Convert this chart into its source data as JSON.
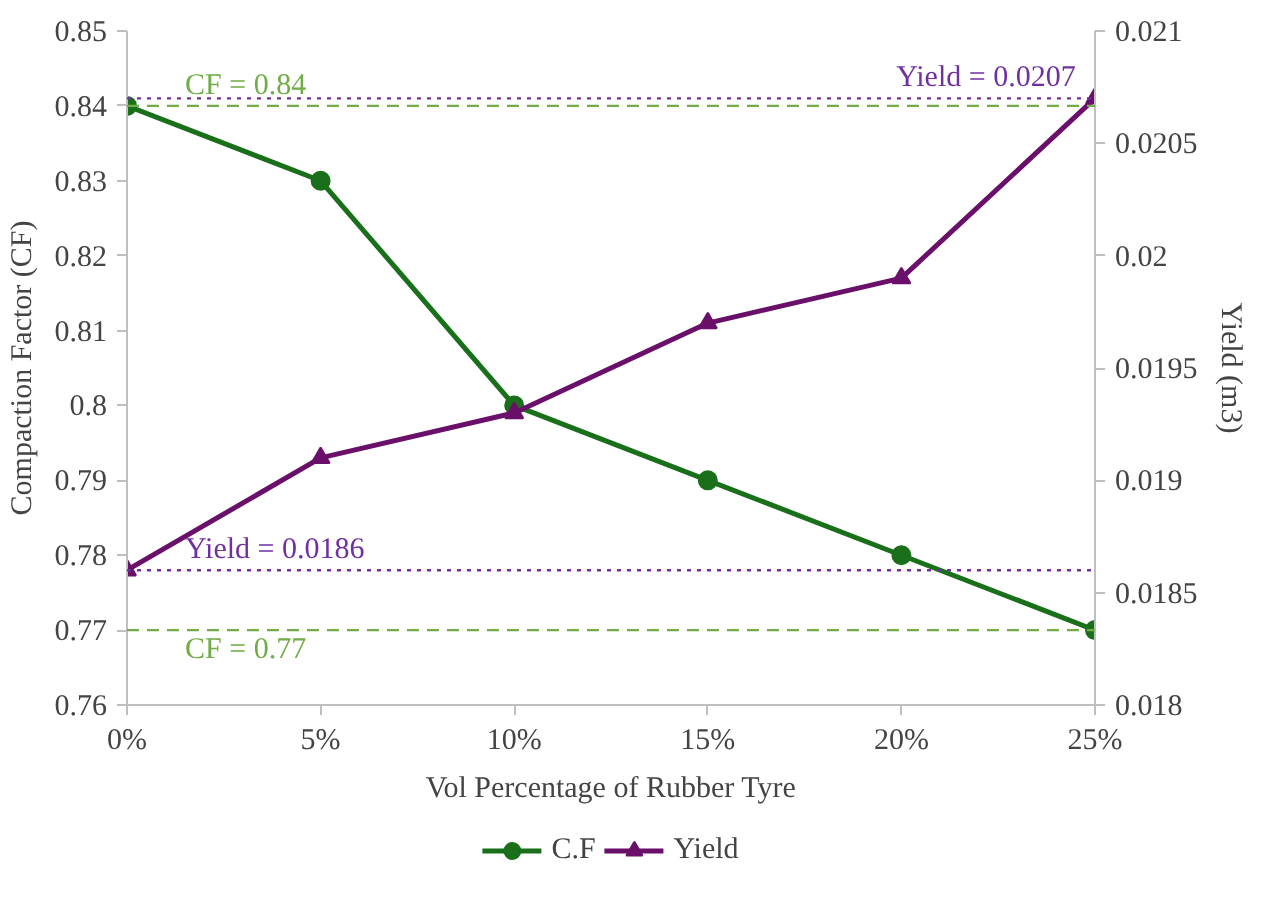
{
  "chart_data": {
    "type": "line",
    "xlabel": "Vol Percentage of Rubber Tyre",
    "ylabel": "Compaction Factor (CF)",
    "y2label": "Yield (m3)",
    "categories": [
      "0%",
      "5%",
      "10%",
      "15%",
      "20%",
      "25%"
    ],
    "series": [
      {
        "name": "C.F",
        "color": "#1a701a",
        "marker": "circle",
        "values": [
          0.84,
          0.83,
          0.8,
          0.79,
          0.78,
          0.77
        ]
      },
      {
        "name": "Yield",
        "color": "#6a0f6a",
        "marker": "triangle",
        "axis": "y2",
        "values": [
          0.0186,
          0.0191,
          0.0193,
          0.0197,
          0.0199,
          0.0207
        ]
      }
    ],
    "ylim": [
      0.76,
      0.85
    ],
    "yticks": [
      0.76,
      0.77,
      0.78,
      0.79,
      0.8,
      0.81,
      0.82,
      0.83,
      0.84,
      0.85
    ],
    "y2lim": [
      0.018,
      0.021
    ],
    "y2ticks": [
      0.018,
      0.0185,
      0.019,
      0.0195,
      0.02,
      0.0205,
      0.021
    ],
    "ref_lines": [
      {
        "axis": "y",
        "value": 0.84,
        "label": "CF = 0.84",
        "color": "#70ad47",
        "line_style": "dashed"
      },
      {
        "axis": "y",
        "value": 0.77,
        "label": "CF = 0.77",
        "color": "#70ad47",
        "line_style": "dashed"
      },
      {
        "axis": "y2",
        "value": 0.0186,
        "label": "Yield = 0.0186",
        "color": "#7030a0",
        "line_style": "dotted"
      },
      {
        "axis": "y2",
        "value": 0.0207,
        "label": "Yield = 0.0207",
        "color": "#7030a0",
        "line_style": "dotted"
      }
    ],
    "grid": false,
    "legend": "bottom"
  }
}
